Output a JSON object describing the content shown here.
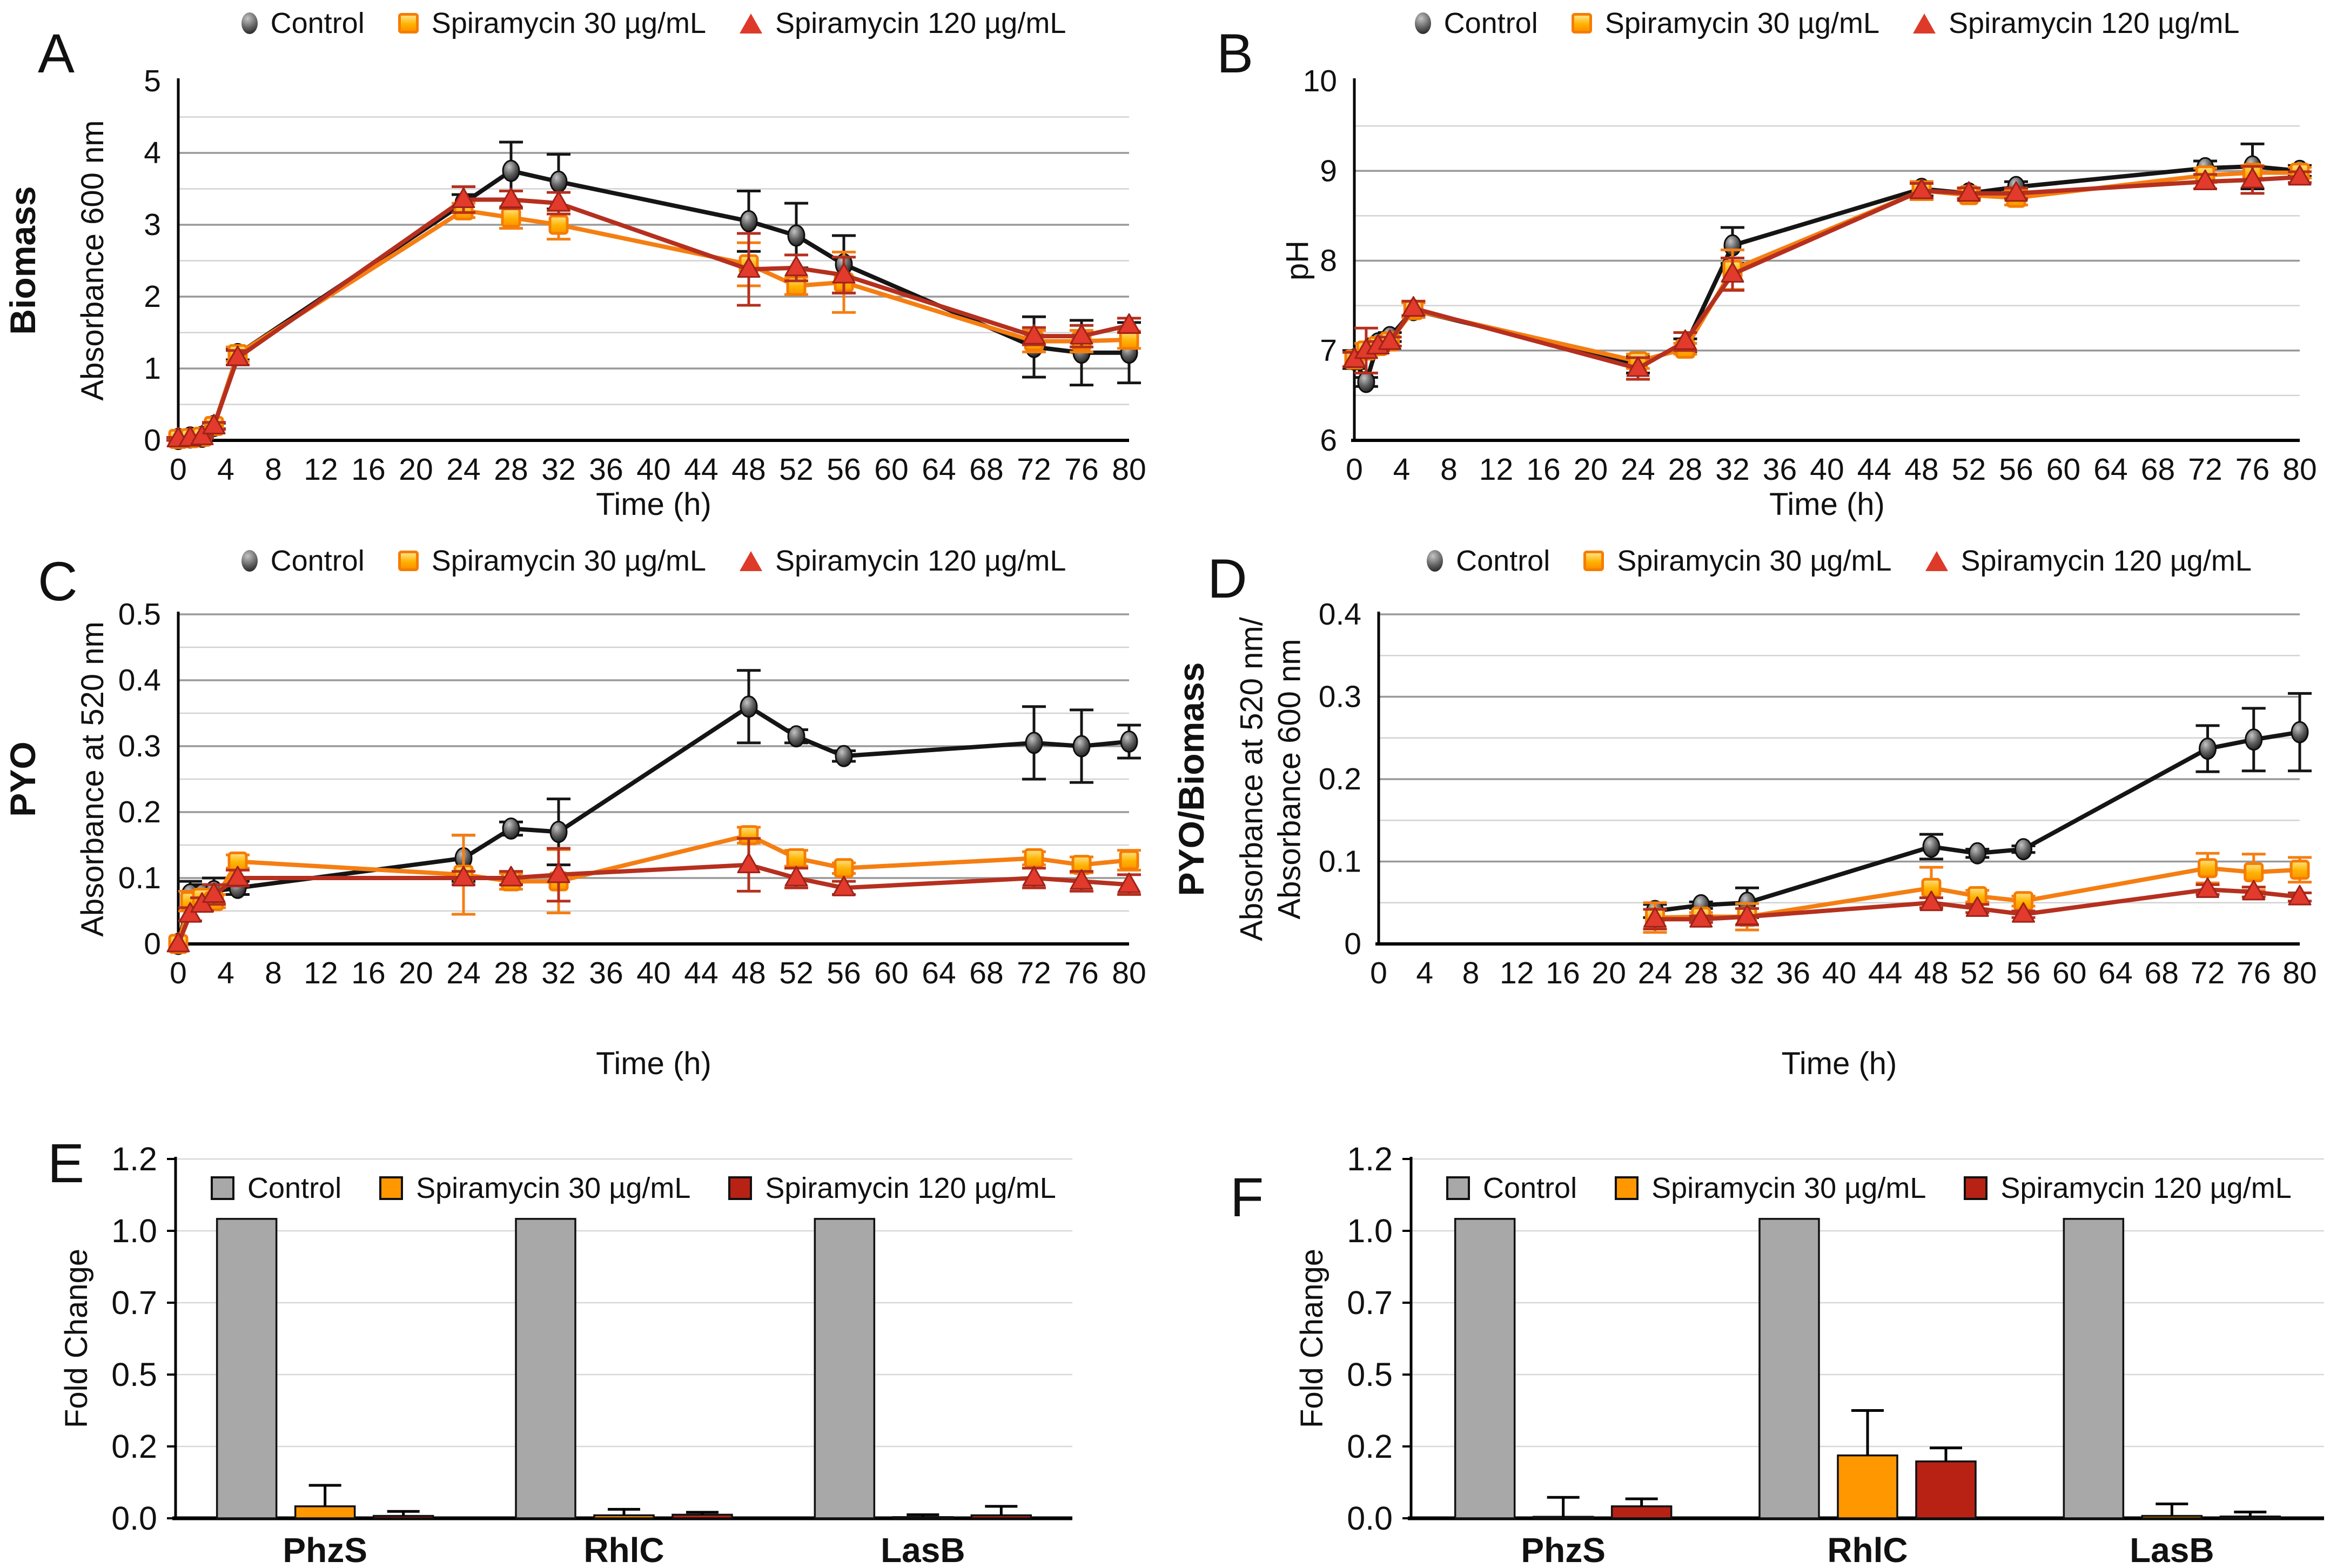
{
  "chart_data": [
    {
      "id": "A",
      "type": "line",
      "side_title": "Biomass",
      "ylabel": "Absorbance 600 nm",
      "xlabel": "Time (h)",
      "legend_position": "top",
      "grid": "horizontal",
      "axis": {
        "xmin": 0,
        "xmax": 80,
        "xstep": 4,
        "ymin": 0,
        "ymax": 5,
        "ystep": 1,
        "yminor": 0.5,
        "ydecimals": 0,
        "top_gridline": false
      },
      "x": [
        0,
        1,
        2,
        3,
        5,
        24,
        28,
        32,
        48,
        52,
        56,
        72,
        76,
        80
      ],
      "series": [
        {
          "name": "Control",
          "marker": "circle",
          "color": "#151515",
          "values": [
            0.02,
            0.04,
            0.05,
            0.2,
            1.2,
            3.3,
            3.75,
            3.6,
            3.05,
            2.85,
            2.45,
            1.3,
            1.22,
            1.22
          ],
          "errors": [
            0.02,
            0.02,
            0.02,
            0.04,
            0.08,
            0.12,
            0.4,
            0.38,
            0.42,
            0.45,
            0.4,
            0.42,
            0.45,
            0.42
          ]
        },
        {
          "name": "Spiramycin 30 µg/mL",
          "marker": "square",
          "color": "#F57E12",
          "values": [
            0.02,
            0.03,
            0.05,
            0.2,
            1.2,
            3.2,
            3.1,
            3.0,
            2.45,
            2.15,
            2.2,
            1.38,
            1.38,
            1.4
          ],
          "errors": [
            0.02,
            0.02,
            0.02,
            0.05,
            0.1,
            0.1,
            0.15,
            0.2,
            0.3,
            0.12,
            0.42,
            0.15,
            0.15,
            0.12
          ]
        },
        {
          "name": "Spiramycin 120 µg/mL",
          "marker": "triangle",
          "color": "#B5301F",
          "values": [
            0.02,
            0.03,
            0.05,
            0.2,
            1.15,
            3.35,
            3.35,
            3.3,
            2.38,
            2.4,
            2.3,
            1.45,
            1.45,
            1.6
          ],
          "errors": [
            0.02,
            0.02,
            0.02,
            0.05,
            0.1,
            0.18,
            0.12,
            0.15,
            0.5,
            0.18,
            0.25,
            0.12,
            0.15,
            0.1
          ]
        }
      ]
    },
    {
      "id": "B",
      "type": "line",
      "side_title": "",
      "ylabel": "pH",
      "xlabel": "Time (h)",
      "legend_position": "top",
      "grid": "horizontal",
      "axis": {
        "xmin": 0,
        "xmax": 80,
        "xstep": 4,
        "ymin": 6,
        "ymax": 10,
        "ystep": 1,
        "yminor": 0.5,
        "ydecimals": 0,
        "top_gridline": false
      },
      "x": [
        0,
        1,
        2,
        3,
        5,
        24,
        28,
        32,
        48,
        52,
        56,
        72,
        76,
        80
      ],
      "series": [
        {
          "name": "Control",
          "marker": "circle",
          "color": "#151515",
          "values": [
            6.9,
            6.65,
            7.08,
            7.15,
            7.45,
            6.85,
            7.05,
            8.17,
            8.8,
            8.75,
            8.82,
            9.03,
            9.05,
            9.0
          ],
          "errors": [
            0.1,
            0.05,
            0.05,
            0.05,
            0.08,
            0.1,
            0.08,
            0.2,
            0.08,
            0.06,
            0.06,
            0.08,
            0.25,
            0.06
          ]
        },
        {
          "name": "Spiramycin 30 µg/mL",
          "marker": "square",
          "color": "#F57E12",
          "values": [
            6.9,
            7.0,
            7.05,
            7.1,
            7.45,
            6.88,
            7.02,
            7.9,
            8.78,
            8.73,
            8.7,
            8.95,
            8.98,
            8.98
          ],
          "errors": [
            0.08,
            0.08,
            0.05,
            0.05,
            0.08,
            0.08,
            0.06,
            0.22,
            0.1,
            0.06,
            0.08,
            0.08,
            0.08,
            0.06
          ]
        },
        {
          "name": "Spiramycin 120 µg/mL",
          "marker": "triangle",
          "color": "#B5301F",
          "values": [
            6.9,
            7.0,
            7.05,
            7.1,
            7.47,
            6.8,
            7.1,
            7.85,
            8.78,
            8.75,
            8.75,
            8.88,
            8.9,
            8.93
          ],
          "errors": [
            0.08,
            0.25,
            0.05,
            0.05,
            0.08,
            0.12,
            0.1,
            0.18,
            0.08,
            0.06,
            0.06,
            0.08,
            0.15,
            0.06
          ]
        }
      ]
    },
    {
      "id": "C",
      "type": "line",
      "side_title": "PYO",
      "ylabel": "Absorbance at 520 nm",
      "xlabel": "Time (h)",
      "legend_position": "top",
      "grid": "horizontal",
      "axis": {
        "xmin": 0,
        "xmax": 80,
        "xstep": 4,
        "ymin": 0,
        "ymax": 0.5,
        "ystep": 0.1,
        "yminor": 0.05,
        "ydecimals": 1,
        "top_gridline": true
      },
      "x": [
        0,
        1,
        2,
        3,
        5,
        24,
        28,
        32,
        48,
        52,
        56,
        72,
        76,
        80
      ],
      "series": [
        {
          "name": "Control",
          "marker": "circle",
          "color": "#151515",
          "values": [
            0.0,
            0.075,
            0.075,
            0.08,
            0.085,
            0.13,
            0.175,
            0.17,
            0.36,
            0.315,
            0.285,
            0.305,
            0.3,
            0.307
          ],
          "errors": [
            0.0,
            0.02,
            0.015,
            0.02,
            0.01,
            0.035,
            0.01,
            0.05,
            0.055,
            0.01,
            0.008,
            0.055,
            0.055,
            0.025
          ]
        },
        {
          "name": "Spiramycin 30 µg/mL",
          "marker": "square",
          "color": "#F57E12",
          "values": [
            0.0,
            0.065,
            0.07,
            0.065,
            0.125,
            0.105,
            0.095,
            0.095,
            0.165,
            0.13,
            0.115,
            0.13,
            0.12,
            0.127
          ],
          "errors": [
            0.0,
            0.015,
            0.01,
            0.01,
            0.01,
            0.06,
            0.012,
            0.048,
            0.012,
            0.012,
            0.008,
            0.01,
            0.012,
            0.015
          ]
        },
        {
          "name": "Spiramycin 120 µg/mL",
          "marker": "triangle",
          "color": "#B5301F",
          "values": [
            0.0,
            0.045,
            0.06,
            0.075,
            0.1,
            0.1,
            0.1,
            0.105,
            0.12,
            0.1,
            0.085,
            0.1,
            0.095,
            0.09
          ],
          "errors": [
            0.0,
            0.01,
            0.01,
            0.015,
            0.012,
            0.01,
            0.01,
            0.04,
            0.04,
            0.015,
            0.01,
            0.015,
            0.015,
            0.015
          ]
        }
      ]
    },
    {
      "id": "D",
      "type": "line",
      "side_title": "PYO/Biomass",
      "ylabel_line1": "Absorbance at 520 nm/",
      "ylabel_line2": "Absorbance 600 nm",
      "xlabel": "Time (h)",
      "legend_position": "top",
      "grid": "horizontal",
      "axis": {
        "xmin": 0,
        "xmax": 80,
        "xstep": 4,
        "ymin": 0,
        "ymax": 0.4,
        "ystep": 0.1,
        "yminor": 0.05,
        "ydecimals": 1,
        "top_gridline": true
      },
      "x": [
        24,
        28,
        32,
        48,
        52,
        56,
        72,
        76,
        80
      ],
      "series": [
        {
          "name": "Control",
          "marker": "circle",
          "color": "#151515",
          "values": [
            0.04,
            0.047,
            0.05,
            0.118,
            0.11,
            0.115,
            0.237,
            0.248,
            0.257
          ],
          "errors": [
            0.008,
            0.004,
            0.018,
            0.015,
            0.005,
            0.004,
            0.028,
            0.038,
            0.047
          ]
        },
        {
          "name": "Spiramycin 30 µg/mL",
          "marker": "square",
          "color": "#F57E12",
          "values": [
            0.032,
            0.033,
            0.033,
            0.068,
            0.058,
            0.052,
            0.092,
            0.087,
            0.09
          ],
          "errors": [
            0.018,
            0.005,
            0.016,
            0.025,
            0.007,
            0.006,
            0.018,
            0.022,
            0.015
          ]
        },
        {
          "name": "Spiramycin 120 µg/mL",
          "marker": "triangle",
          "color": "#B5301F",
          "values": [
            0.03,
            0.03,
            0.033,
            0.05,
            0.043,
            0.036,
            0.066,
            0.063,
            0.057
          ],
          "errors": [
            0.012,
            0.004,
            0.01,
            0.006,
            0.005,
            0.004,
            0.006,
            0.006,
            0.005
          ]
        }
      ]
    },
    {
      "id": "E",
      "type": "bar",
      "ylabel": "Fold Change",
      "categories": [
        "PhzS",
        "RhlC",
        "LasB"
      ],
      "y_tick_labels": [
        "0.0",
        "0.2",
        "0.5",
        "0.7",
        "1.0",
        "1.2"
      ],
      "ymax": 1.2,
      "legend_position": "top-inside",
      "series": [
        {
          "name": "Control",
          "color": "#A8A8A8",
          "values": [
            1.0,
            1.0,
            1.0
          ],
          "errors": [
            0,
            0,
            0
          ]
        },
        {
          "name": "Spiramycin 30 µg/mL",
          "color": "#FF9800",
          "values": [
            0.04,
            0.01,
            0.004
          ],
          "errors": [
            0.07,
            0.02,
            0.008
          ]
        },
        {
          "name": "Spiramycin 120 µg/mL",
          "color": "#B72215",
          "values": [
            0.008,
            0.012,
            0.01
          ],
          "errors": [
            0.015,
            0.008,
            0.03
          ]
        }
      ]
    },
    {
      "id": "F",
      "type": "bar",
      "ylabel": "Fold Change",
      "categories": [
        "PhzS",
        "RhlC",
        "LasB"
      ],
      "y_tick_labels": [
        "0.0",
        "0.2",
        "0.5",
        "0.7",
        "1.0",
        "1.2"
      ],
      "ymax": 1.2,
      "legend_position": "top-inside",
      "series": [
        {
          "name": "Control",
          "color": "#A8A8A8",
          "values": [
            1.0,
            1.0,
            1.0
          ],
          "errors": [
            0,
            0,
            0
          ]
        },
        {
          "name": "Spiramycin 30 µg/mL",
          "color": "#FF9800",
          "values": [
            0.005,
            0.21,
            0.008
          ],
          "errors": [
            0.065,
            0.15,
            0.04
          ]
        },
        {
          "name": "Spiramycin 120 µg/mL",
          "color": "#B72215",
          "values": [
            0.04,
            0.19,
            0.006
          ],
          "errors": [
            0.025,
            0.045,
            0.015
          ]
        }
      ]
    }
  ]
}
